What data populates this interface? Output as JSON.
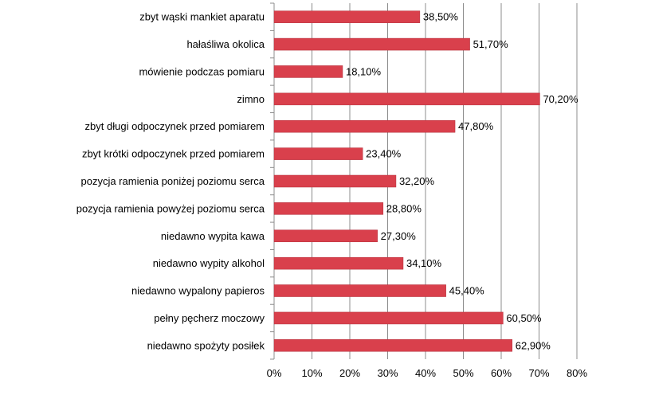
{
  "chart_data": {
    "type": "bar",
    "orientation": "horizontal",
    "categories": [
      "zbyt wąski mankiet aparatu",
      "hałaśliwa okolica",
      "mówienie podczas pomiaru",
      "zimno",
      "zbyt długi odpoczynek przed pomiarem",
      "zbyt krótki odpoczynek przed pomiarem",
      "pozycja ramienia poniżej poziomu serca",
      "pozycja ramienia powyżej poziomu serca",
      "niedawno wypita kawa",
      "niedawno wypity alkohol",
      "niedawno wypalony papieros",
      "pełny pęcherz moczowy",
      "niedawno spożyty posiłek"
    ],
    "values": [
      38.5,
      51.7,
      18.1,
      70.2,
      47.8,
      23.4,
      32.2,
      28.8,
      27.3,
      34.1,
      45.4,
      60.5,
      62.9
    ],
    "data_labels": [
      "38,50%",
      "51,70%",
      "18,10%",
      "70,20%",
      "47,80%",
      "23,40%",
      "32,20%",
      "28,80%",
      "27,30%",
      "34,10%",
      "45,40%",
      "60,50%",
      "62,90%"
    ],
    "x_ticks": [
      "0%",
      "10%",
      "20%",
      "30%",
      "40%",
      "50%",
      "60%",
      "70%",
      "80%"
    ],
    "xlim": [
      0,
      80
    ],
    "grid": true,
    "legend": "none",
    "bar_color": "#d9404c",
    "title": "",
    "xlabel": "",
    "ylabel": ""
  }
}
